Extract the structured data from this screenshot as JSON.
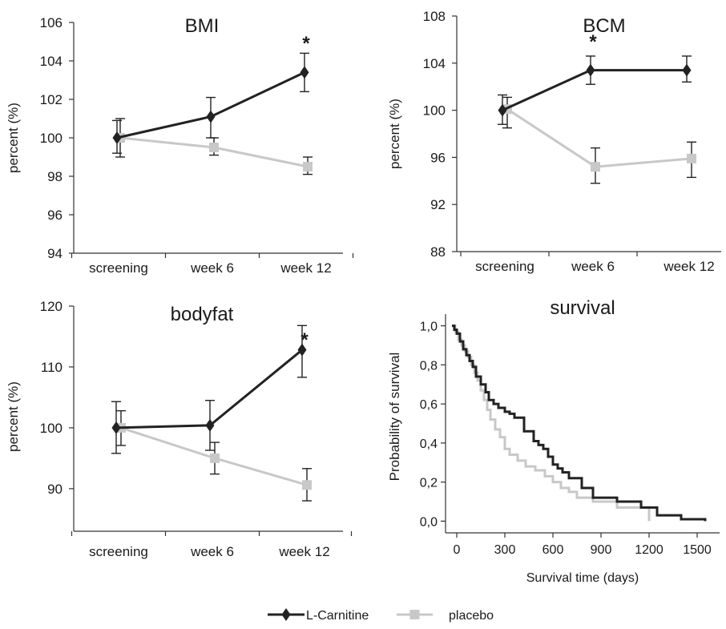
{
  "chart_data": [
    {
      "type": "line",
      "title": "BMI",
      "ylabel": "percent (%)",
      "categories": [
        "screening",
        "week 6",
        "week 12"
      ],
      "ylim": [
        94,
        106
      ],
      "yticks": [
        "94",
        "96",
        "98",
        "100",
        "102",
        "104",
        "106"
      ],
      "significance": {
        "category": "week 12",
        "label": "*"
      },
      "series": [
        {
          "name": "L-Carnitine",
          "values": [
            100,
            101.1,
            103.4
          ],
          "err_low": [
            99.2,
            100,
            102.4
          ],
          "err_high": [
            100.9,
            102.1,
            104.4
          ]
        },
        {
          "name": "placebo",
          "values": [
            100,
            99.5,
            98.5
          ],
          "err_low": [
            99,
            99.1,
            98.1
          ],
          "err_high": [
            101,
            100,
            99
          ]
        }
      ]
    },
    {
      "type": "line",
      "title": "BCM",
      "ylabel": "percent (%)",
      "categories": [
        "screening",
        "week 6",
        "week 12"
      ],
      "ylim": [
        88,
        108
      ],
      "yticks": [
        "88",
        "92",
        "96",
        "100",
        "104",
        "108"
      ],
      "significance": {
        "category": "week 6",
        "label": "*"
      },
      "series": [
        {
          "name": "L-Carnitine",
          "values": [
            100,
            103.4,
            103.4
          ],
          "err_low": [
            98.8,
            102.2,
            102.4
          ],
          "err_high": [
            101.3,
            104.6,
            104.6
          ]
        },
        {
          "name": "placebo",
          "values": [
            100.1,
            95.2,
            95.9
          ],
          "err_low": [
            98.5,
            93.8,
            94.3
          ],
          "err_high": [
            101.1,
            96.8,
            97.3
          ]
        }
      ]
    },
    {
      "type": "line",
      "title": "bodyfat",
      "ylabel": "percent (%)",
      "categories": [
        "screening",
        "week 6",
        "week 12"
      ],
      "ylim": [
        83,
        120
      ],
      "yticks": [
        "90",
        "100",
        "110",
        "120"
      ],
      "significance": {
        "category": "week 12",
        "label": "*"
      },
      "series": [
        {
          "name": "L-Carnitine",
          "values": [
            100,
            100.4,
            112.8
          ],
          "err_low": [
            95.8,
            96.3,
            108.3
          ],
          "err_high": [
            104.3,
            104.5,
            116.8
          ]
        },
        {
          "name": "placebo",
          "values": [
            100,
            95,
            90.6
          ],
          "err_low": [
            97.1,
            92.4,
            88
          ],
          "err_high": [
            102.8,
            97.6,
            93.3
          ]
        }
      ]
    },
    {
      "type": "line",
      "title": "survival",
      "xlabel": "Survival time (days)",
      "ylabel": "Probability of survival",
      "xlim": [
        -70,
        1640
      ],
      "ylim": [
        -0.06,
        1.06
      ],
      "xticks": [
        "0",
        "300",
        "600",
        "900",
        "1200",
        "1500"
      ],
      "yticks": [
        "0,0",
        "0,2",
        "0,4",
        "0,6",
        "0,8",
        "1,0"
      ],
      "series": [
        {
          "name": "L-Carnitine",
          "x": [
            -30,
            -15,
            0,
            20,
            40,
            60,
            80,
            100,
            120,
            150,
            180,
            200,
            230,
            260,
            300,
            330,
            360,
            420,
            480,
            510,
            540,
            570,
            600,
            630,
            660,
            700,
            780,
            850,
            1000,
            1150,
            1250,
            1400,
            1550
          ],
          "y": [
            1.0,
            0.98,
            0.96,
            0.92,
            0.88,
            0.85,
            0.82,
            0.79,
            0.74,
            0.7,
            0.66,
            0.62,
            0.6,
            0.58,
            0.56,
            0.55,
            0.53,
            0.46,
            0.41,
            0.39,
            0.37,
            0.33,
            0.29,
            0.27,
            0.25,
            0.22,
            0.17,
            0.12,
            0.1,
            0.07,
            0.03,
            0.01,
            0.0
          ]
        },
        {
          "name": "placebo",
          "x": [
            -30,
            -10,
            10,
            30,
            50,
            70,
            90,
            110,
            130,
            150,
            170,
            190,
            210,
            240,
            270,
            300,
            330,
            380,
            430,
            490,
            550,
            600,
            650,
            700,
            750,
            850,
            1000,
            1200
          ],
          "y": [
            1.0,
            0.97,
            0.93,
            0.9,
            0.87,
            0.84,
            0.8,
            0.76,
            0.72,
            0.67,
            0.62,
            0.57,
            0.52,
            0.47,
            0.43,
            0.37,
            0.34,
            0.31,
            0.28,
            0.26,
            0.23,
            0.2,
            0.17,
            0.15,
            0.12,
            0.1,
            0.07,
            0.0
          ]
        }
      ]
    }
  ],
  "legend": {
    "items": [
      {
        "label": "L-Carnitine",
        "color": "#222222",
        "marker": "diamond"
      },
      {
        "label": "placebo",
        "color": "#c8c8c8",
        "marker": "square"
      }
    ]
  },
  "colors": {
    "lcarnitine": "#222222",
    "placebo": "#c8c8c8"
  }
}
